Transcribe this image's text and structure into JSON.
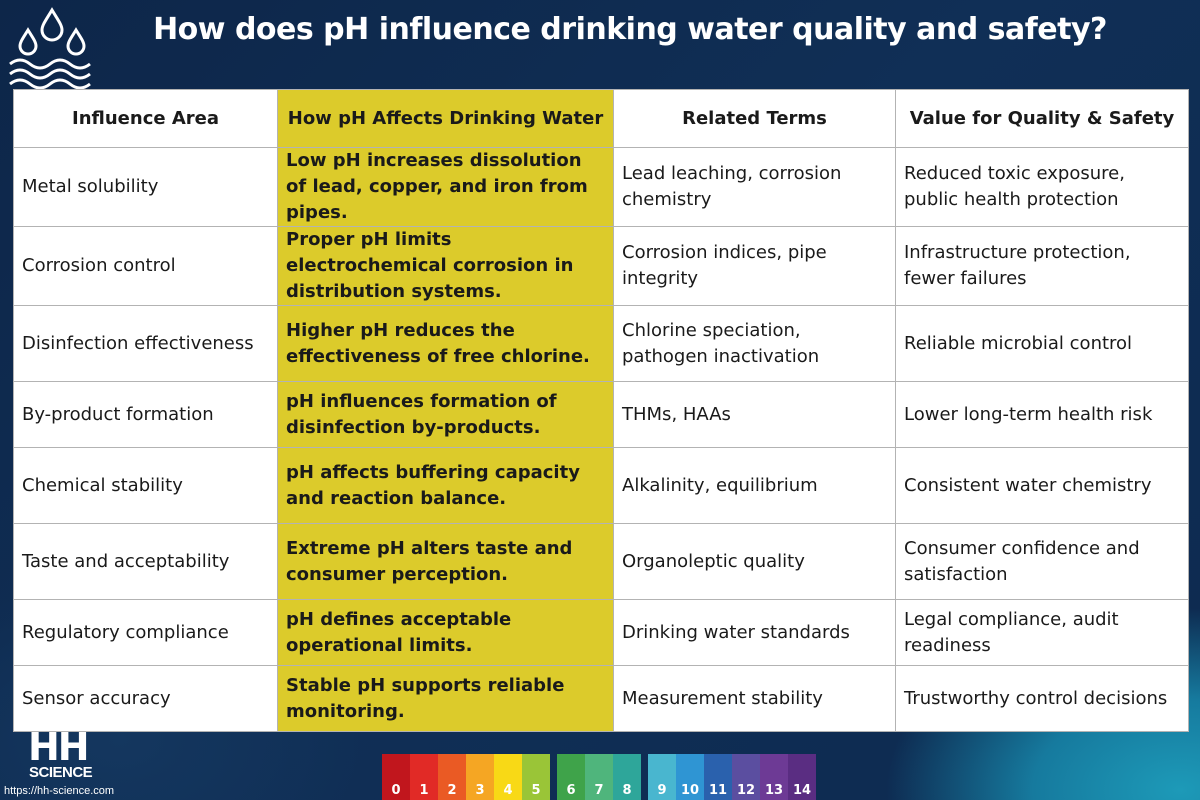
{
  "title": "How does pH influence drinking water quality and safety?",
  "table": {
    "headers": [
      "Influence Area",
      "How pH Affects Drinking Water",
      "Related Terms",
      "Value for Quality & Safety"
    ],
    "rows": [
      [
        "Metal solubility",
        "Low pH increases dissolution of lead, copper, and iron from pipes.",
        "Lead leaching, corrosion chemistry",
        "Reduced toxic exposure, public health protection"
      ],
      [
        "Corrosion control",
        "Proper pH limits electrochemical corrosion in distribution systems.",
        "Corrosion indices, pipe integrity",
        "Infrastructure protection, fewer failures"
      ],
      [
        "Disinfection effectiveness",
        "Higher pH reduces the effectiveness of free chlorine.",
        "Chlorine speciation, pathogen inactivation",
        "Reliable microbial control"
      ],
      [
        "By-product formation",
        "pH influences formation of disinfection by-products.",
        "THMs, HAAs",
        "Lower long-term health risk"
      ],
      [
        "Chemical stability",
        "pH affects buffering capacity and reaction balance.",
        "Alkalinity, equilibrium",
        "Consistent water chemistry"
      ],
      [
        "Taste and acceptability",
        "Extreme pH alters taste and consumer perception.",
        "Organoleptic quality",
        "Consumer confidence and satisfaction"
      ],
      [
        "Regulatory compliance",
        "pH defines acceptable operational limits.",
        "Drinking water standards",
        "Legal compliance, audit readiness"
      ],
      [
        "Sensor accuracy",
        "Stable pH supports reliable monitoring.",
        "Measurement stability",
        "Trustworthy control decisions"
      ]
    ]
  },
  "logo": {
    "hh": "HH",
    "science": "SCIENCE",
    "url": "https://hh-science.com"
  },
  "ph_scale": [
    {
      "label": "0",
      "color": "#c1161d"
    },
    {
      "label": "1",
      "color": "#e12a26"
    },
    {
      "label": "2",
      "color": "#ea5a24"
    },
    {
      "label": "3",
      "color": "#f5a623"
    },
    {
      "label": "4",
      "color": "#f8d916"
    },
    {
      "label": "5",
      "color": "#9ac537"
    },
    {
      "label": "6",
      "color": "#3fa34a"
    },
    {
      "label": "7",
      "color": "#4fb57c"
    },
    {
      "label": "8",
      "color": "#2ea69a"
    },
    {
      "label": "9",
      "color": "#49b6cf"
    },
    {
      "label": "10",
      "color": "#2f95d3"
    },
    {
      "label": "11",
      "color": "#2a61ad"
    },
    {
      "label": "12",
      "color": "#5b4ea0"
    },
    {
      "label": "13",
      "color": "#6d3a95"
    },
    {
      "label": "14",
      "color": "#5a2d82"
    }
  ],
  "colors": {
    "background": "#0e2a4d",
    "highlight": "#dccb2b"
  }
}
